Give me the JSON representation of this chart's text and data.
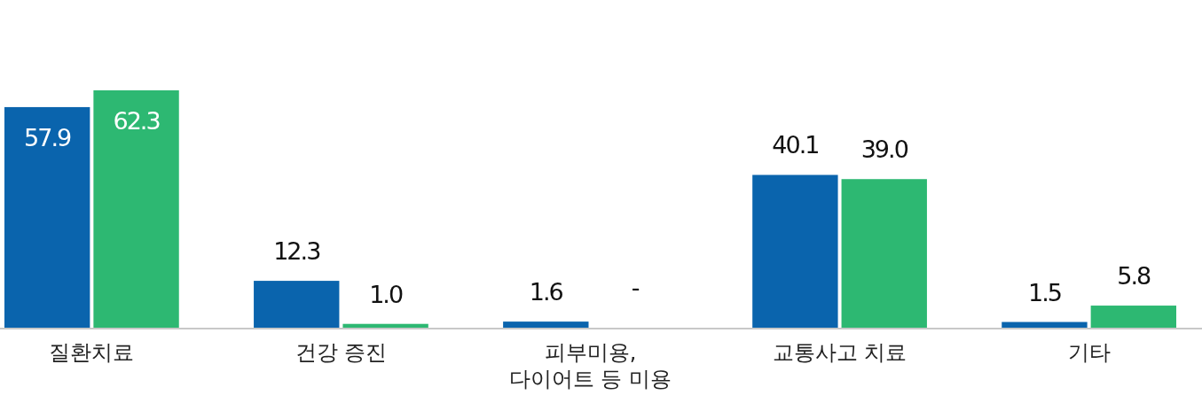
{
  "chart_data": {
    "type": "bar",
    "categories": [
      "질환치료",
      "건강 증진",
      "피부미용, 다이어트 등 미용",
      "교통사고 치료",
      "기타"
    ],
    "series": [
      {
        "color": "#0a64ad",
        "values": [
          57.9,
          12.3,
          1.6,
          40.1,
          1.5
        ]
      },
      {
        "color": "#2db872",
        "values": [
          62.3,
          1.0,
          null,
          39.0,
          5.8
        ],
        "value_labels": [
          "62.3",
          "1.0",
          "-",
          "39.0",
          "5.8"
        ]
      }
    ],
    "data_labels": true
  }
}
